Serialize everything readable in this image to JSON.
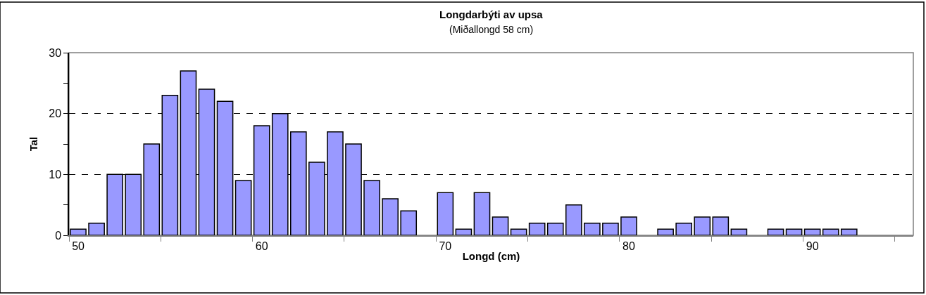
{
  "chart_data": {
    "type": "bar",
    "title": "Longdarbýti av upsa",
    "subtitle": "(Miðallongd 58 cm)",
    "xlabel": "Longd (cm)",
    "ylabel": "Tal",
    "categories": [
      "50",
      null,
      null,
      null,
      null,
      null,
      null,
      null,
      null,
      null,
      "60",
      null,
      null,
      null,
      null,
      null,
      null,
      null,
      null,
      null,
      "70",
      null,
      null,
      null,
      null,
      null,
      null,
      null,
      null,
      null,
      "80",
      null,
      null,
      null,
      null,
      null,
      null,
      null,
      null,
      null,
      "90",
      null,
      null,
      null,
      null,
      null
    ],
    "values": [
      1,
      2,
      10,
      10,
      15,
      23,
      27,
      24,
      22,
      9,
      18,
      20,
      17,
      12,
      17,
      15,
      9,
      6,
      4,
      null,
      7,
      1,
      7,
      3,
      1,
      2,
      2,
      5,
      2,
      2,
      3,
      null,
      1,
      2,
      3,
      3,
      1,
      null,
      1,
      1,
      1,
      1,
      1,
      null,
      null,
      null
    ],
    "color": "#9999ff",
    "ylim": [
      0,
      30
    ],
    "yticks": [
      0,
      {
        "value": 5,
        "label": null
      },
      10,
      {
        "value": 15,
        "label": null
      },
      20,
      {
        "value": 25,
        "label": null
      },
      30
    ],
    "grid": "y",
    "line_style": "dashed"
  }
}
